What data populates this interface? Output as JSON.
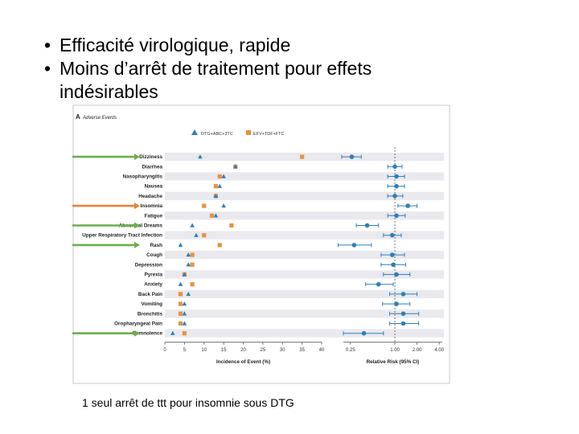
{
  "slide": {
    "bullets": [
      {
        "bullet": "•",
        "text": "Efficacité virologique, rapide"
      },
      {
        "bullet": "•",
        "text": "Moins d’arrêt de traitement pour effets"
      },
      {
        "bullet": "",
        "text": "indésirables"
      }
    ],
    "caption": "1 seul arrêt de ttt pour insomnie sous DTG"
  },
  "colors": {
    "dtg": "#2e7fb8",
    "efv": "#e8923c",
    "rr": "#2e7fb8",
    "arrow_green": "#6ab04c",
    "arrow_orange": "#e8823a"
  },
  "highlight_arrows": [
    {
      "event": "Dizziness",
      "color": "green"
    },
    {
      "event": "Insomnia",
      "color": "orange"
    },
    {
      "event": "Abnormal Dreams",
      "color": "green"
    },
    {
      "event": "Rash",
      "color": "green"
    },
    {
      "event": "Somnolence",
      "color": "green"
    }
  ],
  "chart_data": [
    {
      "type": "scatter",
      "panel_label": "A",
      "title": "Adverse Events",
      "xlabel": "Incidence of Event (%)",
      "xlim": [
        0,
        40
      ],
      "x_ticks": [
        0,
        5,
        10,
        15,
        20,
        25,
        30,
        35,
        40
      ],
      "categories": [
        "Dizziness",
        "Diarrhea",
        "Nasopharyngitis",
        "Nausea",
        "Headache",
        "Insomnia",
        "Fatigue",
        "Abnormal Dreams",
        "Upper Respiratory Tract Infection",
        "Rash",
        "Cough",
        "Depression",
        "Pyrexia",
        "Anxiety",
        "Back Pain",
        "Vomiting",
        "Bronchitis",
        "Oropharyngeal Pain",
        "Somnolence"
      ],
      "series": [
        {
          "name": "DTG+ABC+3TC",
          "marker": "triangle",
          "values": [
            9,
            18,
            15,
            14,
            13,
            15,
            13,
            7,
            8,
            4,
            6,
            6,
            5,
            4,
            6,
            5,
            5,
            5,
            2
          ]
        },
        {
          "name": "EFV+TDF+FTC",
          "marker": "square",
          "values": [
            35,
            18,
            14,
            13,
            13,
            10,
            12,
            17,
            10,
            14,
            7,
            7,
            5,
            7,
            4,
            4,
            4,
            4,
            5
          ]
        }
      ]
    },
    {
      "type": "scatter",
      "xlabel": "Relative Risk (95% CI)",
      "scale": "log",
      "x_ticks": [
        "0.25",
        "1.00",
        "2.00",
        "4.00"
      ],
      "reference_line": 1,
      "series": [
        {
          "values": [
            0.26,
            1.0,
            1.05,
            1.05,
            1.0,
            1.5,
            1.05,
            0.42,
            0.92,
            0.28,
            0.92,
            0.95,
            1.05,
            0.6,
            1.3,
            1.05,
            1.3,
            1.3,
            0.38
          ],
          "ci_low": [
            0.19,
            0.8,
            0.8,
            0.8,
            0.8,
            1.1,
            0.8,
            0.3,
            0.7,
            0.17,
            0.65,
            0.65,
            0.7,
            0.4,
            0.85,
            0.68,
            0.85,
            0.85,
            0.2
          ],
          "ci_high": [
            0.35,
            1.25,
            1.35,
            1.35,
            1.28,
            2.0,
            1.38,
            0.6,
            1.22,
            0.48,
            1.35,
            1.4,
            1.6,
            0.95,
            2.0,
            1.6,
            2.1,
            2.1,
            0.7
          ]
        }
      ]
    }
  ]
}
